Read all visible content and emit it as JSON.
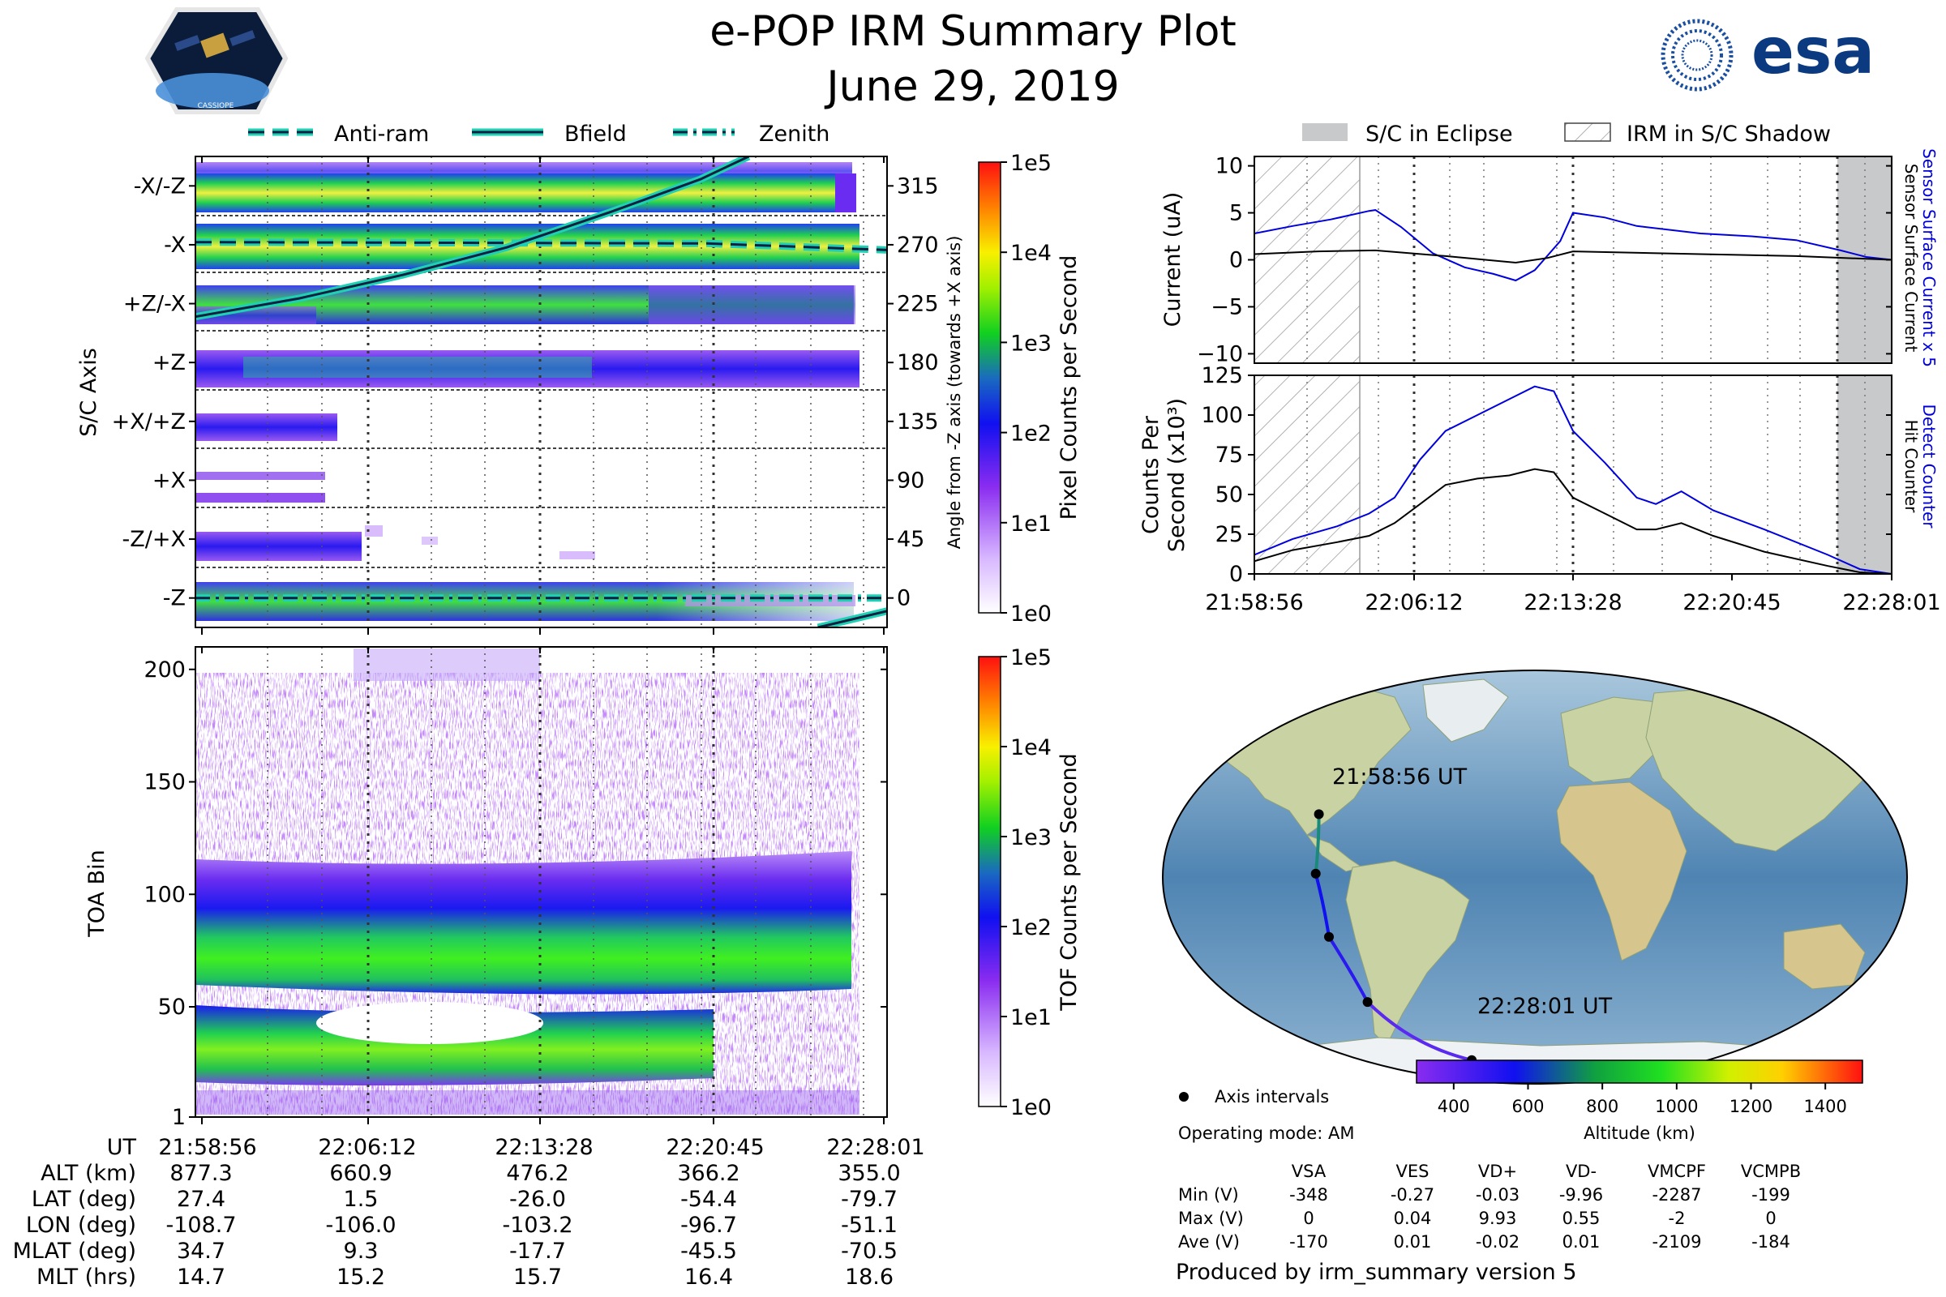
{
  "title": "e-POP IRM Summary Plot",
  "date": "June 29, 2019",
  "logos": {
    "mission": "CASSIOPE",
    "agency": "esa"
  },
  "colors": {
    "bfield_line": "#1fd1b4",
    "sensor_current": "#0000dd",
    "detect_counter": "#0000dd",
    "eclipse_fill": "#c8c9ca",
    "marker": "#000000"
  },
  "chart_data": [
    {
      "id": "sc_axis",
      "type": "heatmap",
      "ylabel": "S/C Axis",
      "ytick_labels": [
        "-X/-Z",
        "-X",
        "+Z/-X",
        "+Z",
        "+X/+Z",
        "+X",
        "-Z/+X",
        "-Z"
      ],
      "y2label": "Angle from -Z axis (towards +X axis)",
      "y2_ticks": [
        315,
        270,
        225,
        180,
        135,
        90,
        45,
        0
      ],
      "y2lim": [
        -22.5,
        337.5
      ],
      "legend": {
        "anti_ram": "Anti-ram",
        "bfield": "Bfield",
        "zenith": "Zenith"
      },
      "colorbar": {
        "label": "Pixel Counts per Second",
        "ticks": [
          "1e0",
          "1e1",
          "1e2",
          "1e3",
          "1e4",
          "1e5"
        ]
      },
      "series": [
        {
          "name": "Anti-ram",
          "style": "dashed",
          "t": [
            0,
            0.74,
            1.0
          ],
          "angle": [
            272,
            271,
            266
          ]
        },
        {
          "name": "Bfield",
          "style": "solid",
          "t": [
            0,
            0.15,
            0.3,
            0.45,
            0.6,
            0.73,
            0.8,
            0.9,
            1.0
          ],
          "angle": [
            215,
            229,
            247,
            268,
            295,
            320,
            337.5,
            -22.5,
            -10
          ]
        },
        {
          "name": "Zenith",
          "style": "dashdot",
          "t": [
            0,
            0.5,
            1.0
          ],
          "angle": [
            0,
            0,
            0
          ]
        }
      ]
    },
    {
      "id": "toa",
      "type": "heatmap",
      "ylabel": "TOA Bin",
      "ytick_labels": [
        "1",
        "50",
        "100",
        "150",
        "200"
      ],
      "yticks": [
        1,
        50,
        100,
        150,
        200
      ],
      "ylim": [
        1,
        210
      ],
      "colorbar": {
        "label": "TOF Counts per Second",
        "ticks": [
          "1e0",
          "1e1",
          "1e2",
          "1e3",
          "1e4",
          "1e5"
        ]
      }
    },
    {
      "id": "current",
      "type": "line",
      "ylabel": "Current (uA)",
      "ylim": [
        -11,
        11
      ],
      "ytick_labels": [
        "10",
        "5",
        "0",
        "−5",
        "−10"
      ],
      "yticks": [
        10,
        5,
        0,
        -5,
        -10
      ],
      "right_label_1": "Sensor Surface Current x 5",
      "right_label_2": "Sensor Surface Current",
      "series": [
        {
          "name": "Sensor Surface Current x 5",
          "t": [
            0,
            0.06,
            0.12,
            0.18,
            0.19,
            0.23,
            0.28,
            0.33,
            0.375,
            0.41,
            0.44,
            0.48,
            0.5,
            0.55,
            0.6,
            0.7,
            0.78,
            0.85,
            0.92,
            0.96,
            1.0
          ],
          "values": [
            2.8,
            3.6,
            4.3,
            5.2,
            5.3,
            3.5,
            0.7,
            -0.8,
            -1.5,
            -2.2,
            -1.1,
            2.0,
            5.0,
            4.5,
            3.6,
            2.8,
            2.5,
            2.1,
            1.0,
            0.3,
            0.0
          ]
        },
        {
          "name": "Sensor Surface Current",
          "t": [
            0,
            0.1,
            0.19,
            0.3,
            0.41,
            0.46,
            0.5,
            0.7,
            0.85,
            1.0
          ],
          "values": [
            0.6,
            0.9,
            1.0,
            0.4,
            -0.3,
            0.2,
            0.9,
            0.6,
            0.4,
            0.0
          ]
        }
      ]
    },
    {
      "id": "counts",
      "type": "line",
      "ylabel_1": "Counts Per",
      "ylabel_2": "Second (x10³)",
      "ylim": [
        0,
        125
      ],
      "ytick_labels": [
        "0",
        "25",
        "50",
        "75",
        "100",
        "125"
      ],
      "yticks": [
        0,
        25,
        50,
        75,
        100,
        125
      ],
      "right_label_1": "Detect Counter",
      "right_label_2": "Hit Counter",
      "series": [
        {
          "name": "Detect Counter",
          "t": [
            0,
            0.06,
            0.13,
            0.18,
            0.22,
            0.26,
            0.3,
            0.35,
            0.4,
            0.44,
            0.47,
            0.5,
            0.55,
            0.6,
            0.63,
            0.67,
            0.72,
            0.8,
            0.9,
            0.95,
            1.0
          ],
          "values": [
            12,
            22,
            30,
            38,
            48,
            72,
            90,
            100,
            110,
            118,
            115,
            90,
            70,
            48,
            44,
            52,
            40,
            28,
            12,
            3,
            0
          ]
        },
        {
          "name": "Hit Counter",
          "t": [
            0,
            0.06,
            0.13,
            0.18,
            0.22,
            0.26,
            0.3,
            0.35,
            0.4,
            0.44,
            0.47,
            0.5,
            0.55,
            0.6,
            0.63,
            0.67,
            0.72,
            0.8,
            0.9,
            0.95,
            1.0
          ],
          "values": [
            8,
            15,
            20,
            24,
            32,
            44,
            56,
            60,
            62,
            66,
            64,
            48,
            38,
            28,
            28,
            32,
            24,
            14,
            5,
            1,
            0
          ]
        }
      ]
    },
    {
      "id": "orbit_map",
      "type": "map",
      "start_label": "21:58:56 UT",
      "end_label": "22:28:01 UT",
      "track": {
        "lon": [
          -108.7,
          -106.0,
          -103.2,
          -96.7,
          -51.1
        ],
        "lat": [
          27.4,
          1.5,
          -26.0,
          -54.4,
          -79.7
        ]
      },
      "colorbar": {
        "label": "Altitude (km)",
        "ticks": [
          "400",
          "600",
          "800",
          "1000",
          "1200",
          "1400"
        ],
        "range": [
          300,
          1500
        ]
      }
    }
  ],
  "time_ticks": [
    "21:58:56",
    "22:06:12",
    "22:13:28",
    "22:20:45",
    "22:28:01"
  ],
  "right_time_ticks": [
    "21:58:56",
    "22:06:12",
    "22:13:28",
    "22:20:45",
    "22:28:01"
  ],
  "top_legend": {
    "eclipse": "S/C in Eclipse",
    "shadow": "IRM in S/C Shadow"
  },
  "ephemeris": {
    "rows": [
      {
        "label": "UT",
        "values": [
          "21:58:56",
          "22:06:12",
          "22:13:28",
          "22:20:45",
          "22:28:01"
        ]
      },
      {
        "label": "ALT (km)",
        "values": [
          "877.3",
          "660.9",
          "476.2",
          "366.2",
          "355.0"
        ]
      },
      {
        "label": "LAT (deg)",
        "values": [
          "27.4",
          "1.5",
          "-26.0",
          "-54.4",
          "-79.7"
        ]
      },
      {
        "label": "LON (deg)",
        "values": [
          "-108.7",
          "-106.0",
          "-103.2",
          "-96.7",
          "-51.1"
        ]
      },
      {
        "label": "MLAT (deg)",
        "values": [
          "34.7",
          "9.3",
          "-17.7",
          "-45.5",
          "-70.5"
        ]
      },
      {
        "label": "MLT (hrs)",
        "values": [
          "14.7",
          "15.2",
          "15.7",
          "16.4",
          "18.6"
        ]
      }
    ]
  },
  "legend_axis_intervals": "Axis intervals",
  "operating_mode": "Operating mode: AM",
  "voltage_table": {
    "columns": [
      "VSA",
      "VES",
      "VD+",
      "VD-",
      "VMCPF",
      "VCMPB"
    ],
    "rows": [
      {
        "label": "Min (V)",
        "values": [
          "-348",
          "-0.27",
          "-0.03",
          "-9.96",
          "-2287",
          "-199"
        ]
      },
      {
        "label": "Max (V)",
        "values": [
          "0",
          "0.04",
          "9.93",
          "0.55",
          "-2",
          "0"
        ]
      },
      {
        "label": "Ave (V)",
        "values": [
          "-170",
          "0.01",
          "-0.02",
          "0.01",
          "-2109",
          "-184"
        ]
      }
    ]
  },
  "footer": "Produced by irm_summary version 5"
}
